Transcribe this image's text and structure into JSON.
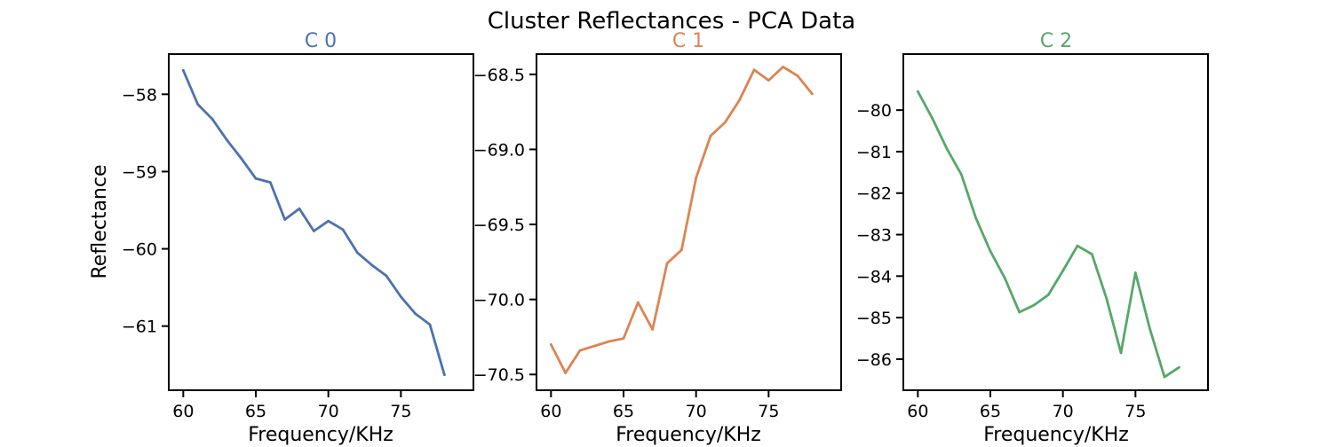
{
  "figure": {
    "title": "Cluster Reflectances - PCA Data"
  },
  "colors": [
    "#4c72b0",
    "#dd8452",
    "#55a868"
  ],
  "chart_data": [
    {
      "type": "line",
      "title": "C 0",
      "xlabel": "Frequency/KHz",
      "ylabel": "Reflectance",
      "xlim": [
        59,
        80
      ],
      "ylim": [
        -61.83,
        -57.48
      ],
      "xticks": [
        60,
        65,
        70,
        75
      ],
      "xtick_labels": [
        "60",
        "65",
        "70",
        "75"
      ],
      "yticks": [
        -58,
        -59,
        -60,
        -61
      ],
      "ytick_labels": [
        "−58",
        "−59",
        "−60",
        "−61"
      ],
      "x": [
        60,
        61,
        62,
        63,
        64,
        65,
        66,
        67,
        68,
        69,
        70,
        71,
        72,
        73,
        74,
        75,
        76,
        77,
        78
      ],
      "values": [
        -57.69,
        -58.13,
        -58.32,
        -58.59,
        -58.83,
        -59.09,
        -59.14,
        -59.62,
        -59.48,
        -59.77,
        -59.64,
        -59.75,
        -60.05,
        -60.21,
        -60.35,
        -60.62,
        -60.84,
        -60.98,
        -61.63
      ],
      "grid": false
    },
    {
      "type": "line",
      "title": "C 1",
      "xlabel": "Frequency/KHz",
      "ylabel": "",
      "xlim": [
        59,
        80
      ],
      "ylim": [
        -70.605,
        -68.365
      ],
      "xticks": [
        60,
        65,
        70,
        75
      ],
      "xtick_labels": [
        "60",
        "65",
        "70",
        "75"
      ],
      "yticks": [
        -68.5,
        -69.0,
        -69.5,
        -70.0,
        -70.5
      ],
      "ytick_labels": [
        "−68.5",
        "−69.0",
        "−69.5",
        "−70.0",
        "−70.5"
      ],
      "x": [
        60,
        61,
        62,
        63,
        64,
        65,
        66,
        67,
        68,
        69,
        70,
        71,
        72,
        73,
        74,
        75,
        76,
        77,
        78
      ],
      "values": [
        -70.3,
        -70.49,
        -70.34,
        -70.31,
        -70.28,
        -70.26,
        -70.02,
        -70.2,
        -69.76,
        -69.67,
        -69.19,
        -68.91,
        -68.82,
        -68.67,
        -68.47,
        -68.54,
        -68.45,
        -68.51,
        -68.63
      ],
      "grid": false
    },
    {
      "type": "line",
      "title": "C 2",
      "xlabel": "Frequency/KHz",
      "ylabel": "",
      "xlim": [
        59,
        80
      ],
      "ylim": [
        -86.75,
        -78.65
      ],
      "xticks": [
        60,
        65,
        70,
        75
      ],
      "xtick_labels": [
        "60",
        "65",
        "70",
        "75"
      ],
      "yticks": [
        -80,
        -81,
        -82,
        -83,
        -84,
        -85,
        -86
      ],
      "ytick_labels": [
        "−80",
        "−81",
        "−82",
        "−83",
        "−84",
        "−85",
        "−86"
      ],
      "x": [
        60,
        61,
        62,
        63,
        64,
        65,
        66,
        67,
        68,
        69,
        70,
        71,
        72,
        73,
        74,
        75,
        76,
        77,
        78
      ],
      "values": [
        -79.55,
        -80.2,
        -80.93,
        -81.55,
        -82.6,
        -83.4,
        -84.05,
        -84.87,
        -84.7,
        -84.45,
        -83.87,
        -83.27,
        -83.47,
        -84.53,
        -85.85,
        -83.92,
        -85.28,
        -86.43,
        -86.2
      ],
      "grid": false
    }
  ]
}
